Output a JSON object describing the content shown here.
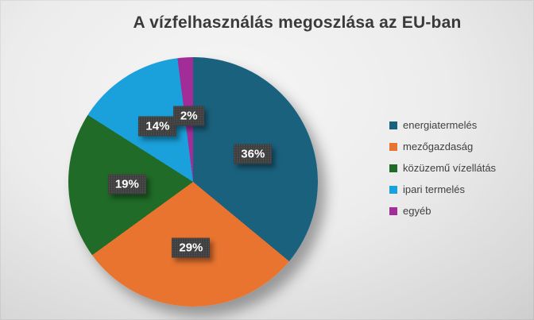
{
  "chart_data": {
    "type": "pie",
    "title": "A vízfelhasználás megoszlása az EU-ban",
    "categories": [
      "energiatermelés",
      "mezőgazdaság",
      "közüzemű vízellátás",
      "ipari termelés",
      "egyéb"
    ],
    "values": [
      36,
      29,
      19,
      14,
      2
    ],
    "data_labels": [
      "36%",
      "29%",
      "19%",
      "14%",
      "2%"
    ],
    "colors": [
      "#1a617e",
      "#e87430",
      "#1f6b27",
      "#1aa0da",
      "#a22d98"
    ],
    "start_angle_deg": 0,
    "direction": "clockwise",
    "legend_position": "right",
    "label_background": "#3f3f3f",
    "label_text_color": "#ffffff",
    "title_color": "#3a3a3a"
  }
}
